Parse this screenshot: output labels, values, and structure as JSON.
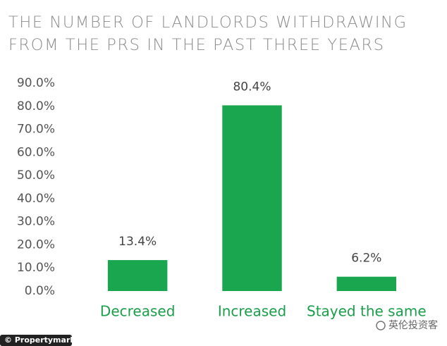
{
  "chart_data": {
    "type": "bar",
    "title": "THE NUMBER OF LANDLORDS WITHDRAWING FROM THE PRS IN THE PAST THREE YEARS",
    "categories": [
      "Decreased",
      "Increased",
      "Stayed the same"
    ],
    "values": [
      13.4,
      80.4,
      6.2
    ],
    "value_labels": [
      "13.4%",
      "80.4%",
      "6.2%"
    ],
    "color": "#1aa64e",
    "ylim": [
      0,
      90
    ],
    "yticks": [
      {
        "value": 0,
        "label": "0.0%"
      },
      {
        "value": 10,
        "label": "10.0%"
      },
      {
        "value": 20,
        "label": "20.0%"
      },
      {
        "value": 30,
        "label": "30.0%"
      },
      {
        "value": 40,
        "label": "40.0%"
      },
      {
        "value": 50,
        "label": "50.0%"
      },
      {
        "value": 60,
        "label": "60.0%"
      },
      {
        "value": 70,
        "label": "70.0%"
      },
      {
        "value": 80,
        "label": "80.0%"
      },
      {
        "value": 90,
        "label": "90.0%"
      }
    ],
    "grid": false,
    "credit": "© Propertymark",
    "watermark": "英伦投资客"
  }
}
